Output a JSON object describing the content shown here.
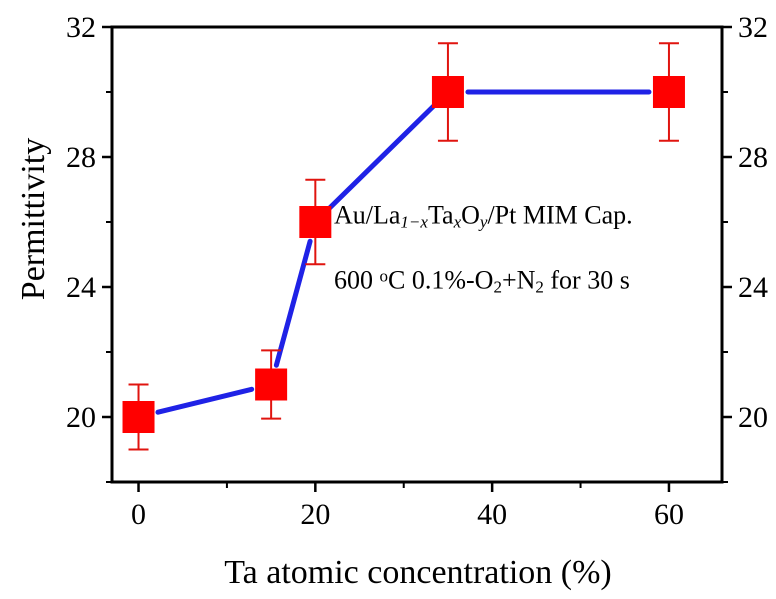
{
  "chart_data": {
    "type": "line",
    "title": "",
    "xlabel": "Ta atomic concentration (%)",
    "ylabel": "Permittivity",
    "xlim": [
      -3,
      66
    ],
    "ylim": [
      18.0,
      32
    ],
    "xticks": [
      0,
      20,
      40,
      60
    ],
    "yticks": [
      20,
      24,
      28,
      32
    ],
    "right_yticks": [
      20,
      24,
      28,
      32
    ],
    "grid": false,
    "legend": "none",
    "series": [
      {
        "x": [
          0,
          15,
          20,
          35,
          60
        ],
        "y": [
          20,
          21,
          26,
          30,
          30
        ],
        "yerr": [
          1.0,
          1.05,
          1.3,
          1.5,
          1.5
        ],
        "line_color": "#1f22e6",
        "marker_color": "#ff0000",
        "errorbar_color": "#e0140f",
        "marker": "square"
      }
    ],
    "annotations": [
      {
        "lines": [
          [
            {
              "t": "Au/La",
              "s": "normal"
            },
            {
              "t": "1−x",
              "s": "sub"
            },
            {
              "t": "Ta",
              "s": "normal"
            },
            {
              "t": "x",
              "s": "sub"
            },
            {
              "t": "O",
              "s": "normal"
            },
            {
              "t": "y",
              "s": "sub"
            },
            {
              "t": "/Pt MIM Cap.",
              "s": "normal"
            }
          ],
          [
            {
              "t": "600 ",
              "s": "normal"
            },
            {
              "t": "o",
              "s": "sup"
            },
            {
              "t": "C 0.1%-O",
              "s": "normal"
            },
            {
              "t": "2",
              "s": "sub"
            },
            {
              "t": "+N",
              "s": "normal"
            },
            {
              "t": "2",
              "s": "sub"
            },
            {
              "t": " for 30 s",
              "s": "normal"
            }
          ]
        ]
      }
    ]
  }
}
